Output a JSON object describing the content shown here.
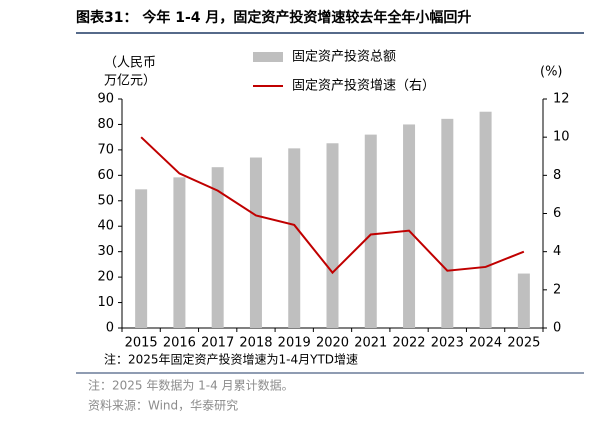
{
  "chart_data": {
    "type": "bar_line",
    "title": "图表31： 今年 1-4 月，固定资产投资增速较去年全年小幅回升",
    "ylabel": [
      "（人民币",
      "万亿元）"
    ],
    "y2label": "(%)",
    "categories": [
      "2015",
      "2016",
      "2017",
      "2018",
      "2019",
      "2020",
      "2021",
      "2022",
      "2023",
      "2024",
      "2025"
    ],
    "series": [
      {
        "name": "固定资产投资总额",
        "color": "#bfbfbf",
        "kind": "bar",
        "values": [
          54.5,
          59.2,
          63.2,
          67.0,
          70.6,
          72.6,
          76.0,
          80.0,
          82.2,
          85.0,
          21.4
        ]
      },
      {
        "name": "固定资产投资增速（右）",
        "color": "#c00000",
        "kind": "line",
        "axis": "y2",
        "values": [
          10.0,
          8.1,
          7.2,
          5.9,
          5.4,
          2.9,
          4.9,
          5.1,
          3.0,
          3.2,
          4.0
        ]
      }
    ],
    "ylim": [
      0,
      90
    ],
    "yticks": [
      0,
      10,
      20,
      30,
      40,
      50,
      60,
      70,
      80,
      90
    ],
    "y2lim": [
      0,
      12
    ],
    "y2ticks": [
      0,
      2,
      4,
      6,
      8,
      10,
      12
    ],
    "note": "注：2025年固定资产投资增速为1-4月YTD增速"
  },
  "footer": {
    "note": "注：2025 年数据为 1-4 月累计数据。",
    "source": "资料来源：Wind，华泰研究"
  }
}
